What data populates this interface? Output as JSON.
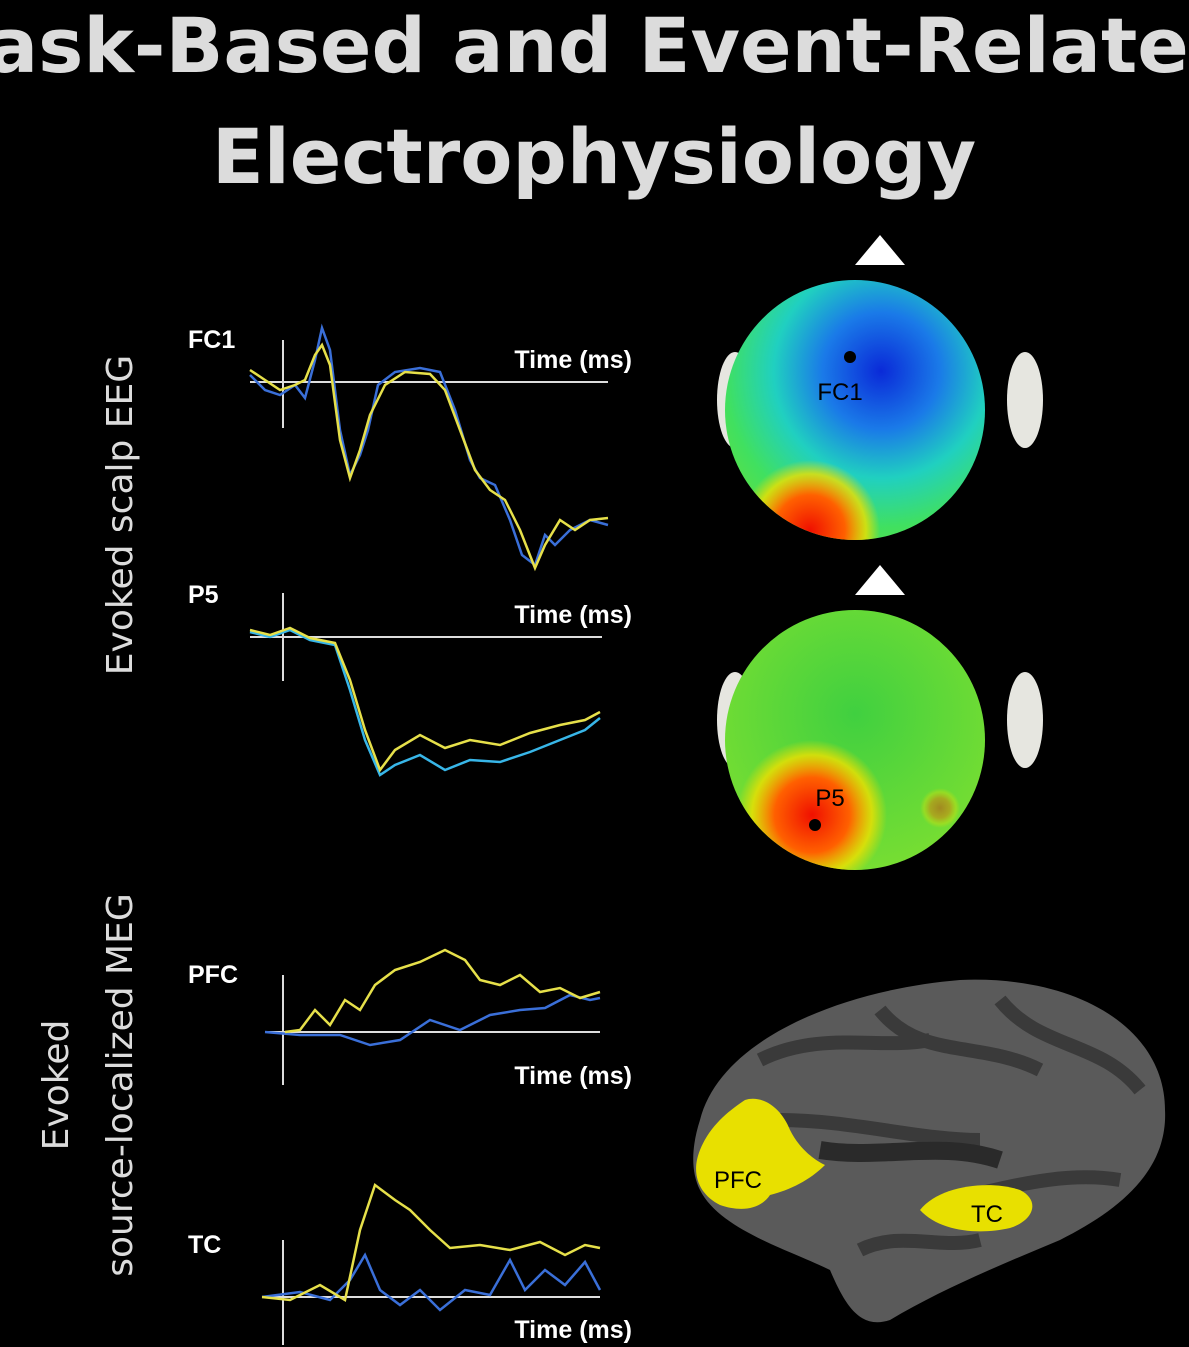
{
  "title_lines": [
    "Task-Based and Event-Related",
    "Electrophysiology"
  ],
  "section_labels": {
    "eeg": "Evoked scalp EEG",
    "meg": [
      "Evoked",
      "source-localized MEG"
    ]
  },
  "traces": [
    {
      "label": "FC1",
      "axis_label": "Time (ms)"
    },
    {
      "label": "P5",
      "axis_label": "Time (ms)"
    },
    {
      "label": "PFC",
      "axis_label": "Time (ms)"
    },
    {
      "label": "TC",
      "axis_label": "Time (ms)"
    }
  ],
  "topomaps": [
    {
      "label": "FC1"
    },
    {
      "label": "P5"
    }
  ],
  "brain_labels": [
    "PFC",
    "TC"
  ]
}
